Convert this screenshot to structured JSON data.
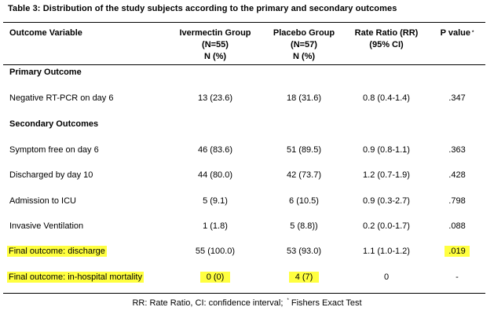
{
  "caption": "Table 3: Distribution of the study subjects according to the primary and secondary outcomes",
  "headers": {
    "outcome": "Outcome Variable",
    "ivermectin": [
      "Ivermectin Group",
      "(N=55)",
      "N (%)"
    ],
    "placebo": [
      "Placebo Group",
      "(N=57)",
      "N (%)"
    ],
    "rr": [
      "Rate Ratio (RR)",
      "(95% CI)"
    ],
    "p": "P value",
    "p_mark": "*"
  },
  "sections": {
    "primary": "Primary Outcome",
    "secondary": "Secondary Outcomes"
  },
  "rows": [
    {
      "variable": "Negative RT-PCR on day 6",
      "ivermectin": "13 (23.6)",
      "placebo": "18 (31.6)",
      "rr": "0.8 (0.4-1.4)",
      "p": ".347"
    },
    {
      "variable": "Symptom free on day 6",
      "ivermectin": "46 (83.6)",
      "placebo": "51 (89.5)",
      "rr": "0.9 (0.8-1.1)",
      "p": ".363"
    },
    {
      "variable": "Discharged by day 10",
      "ivermectin": "44 (80.0)",
      "placebo": "42 (73.7)",
      "rr": "1.2 (0.7-1.9)",
      "p": ".428"
    },
    {
      "variable": "Admission to ICU",
      "ivermectin": "5 (9.1)",
      "placebo": "6 (10.5)",
      "rr": "0.9 (0.3-2.7)",
      "p": ".798"
    },
    {
      "variable": "Invasive Ventilation",
      "ivermectin": "1 (1.8)",
      "placebo": "5 (8.8))",
      "rr": "0.2 (0.0-1.7)",
      "p": ".088"
    },
    {
      "variable": "Final outcome: discharge",
      "ivermectin": "55 (100.0)",
      "placebo": "53 (93.0)",
      "rr": "1.1 (1.0-1.2)",
      "p": ".019"
    },
    {
      "variable": "Final outcome: in-hospital mortality",
      "ivermectin": "0 (0)",
      "placebo": "4 (7)",
      "rr": "0",
      "p": "-"
    }
  ],
  "footer": {
    "text": "RR: Rate Ratio, CI: confidence interval;",
    "mark": "*",
    "text2": "Fishers Exact Test"
  },
  "highlight_color": "#ffff40"
}
